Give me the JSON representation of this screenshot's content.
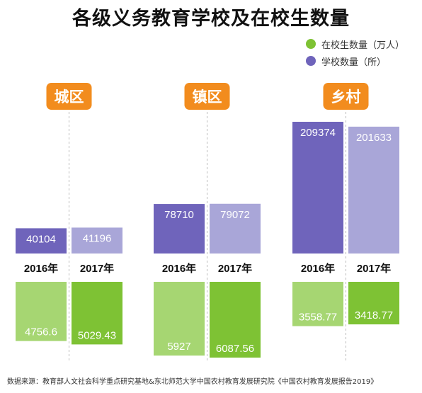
{
  "colors": {
    "students_2016": "#a6d672",
    "students_2017": "#7ec234",
    "schools_2016": "#6f64bb",
    "schools_2017": "#a9a6d8",
    "region_badge": "#f28c1e",
    "divider": "#bbbbbb"
  },
  "chart_data": {
    "type": "bar",
    "title": "各级义务教育学校及在校生数量",
    "legend": [
      {
        "name": "在校生数量（万人）",
        "color": "#7ec234"
      },
      {
        "name": "学校数量（所）",
        "color": "#6f64bb"
      }
    ],
    "legend_position": "top-right",
    "categories": [
      "城区",
      "镇区",
      "乡村"
    ],
    "years": [
      "2016年",
      "2017年"
    ],
    "series": [
      {
        "name": "学校数量（所）",
        "values_2016": [
          40104,
          78710,
          209374
        ],
        "values_2017": [
          41196,
          79072,
          201633
        ],
        "labels_2016": [
          "40104",
          "78710",
          "209374"
        ],
        "labels_2017": [
          "41196",
          "79072",
          "201633"
        ]
      },
      {
        "name": "在校生数量（万人）",
        "values_2016": [
          4756.6,
          5927,
          3558.77
        ],
        "values_2017": [
          5029.43,
          6087.56,
          3418.77
        ],
        "labels_2016": [
          "4756.6",
          "5927",
          "3558.77"
        ],
        "labels_2017": [
          "5029.43",
          "6087.56",
          "3418.77"
        ]
      }
    ],
    "grid": false
  },
  "source": "数据来源：教育部人文社会科学重点研究基地&东北师范大学中国农村教育发展研究院《中国农村教育发展报告2019》"
}
